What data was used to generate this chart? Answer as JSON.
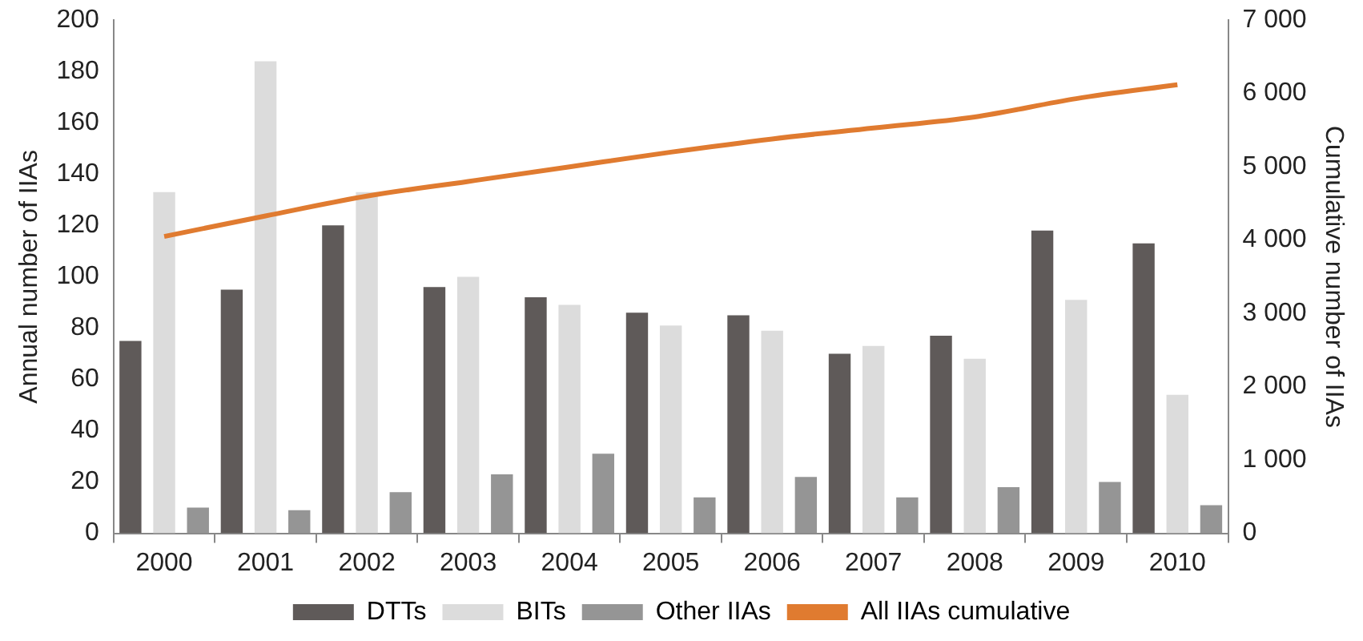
{
  "chart_data": {
    "type": "bar",
    "ylabel": "Annual number of IIAs",
    "y2label": "Cumulative number of IIAs",
    "categories": [
      "2000",
      "2001",
      "2002",
      "2003",
      "2004",
      "2005",
      "2006",
      "2007",
      "2008",
      "2009",
      "2010"
    ],
    "series": [
      {
        "name": "DTTs",
        "color": "#5f5a59",
        "values": [
          75,
          95,
          120,
          96,
          92,
          86,
          85,
          70,
          77,
          118,
          113
        ]
      },
      {
        "name": "BITs",
        "color": "#dcdcdc",
        "values": [
          133,
          184,
          133,
          100,
          89,
          81,
          79,
          73,
          68,
          91,
          54
        ]
      },
      {
        "name": "Other IIAs",
        "color": "#959595",
        "values": [
          10,
          9,
          16,
          23,
          31,
          14,
          22,
          14,
          18,
          20,
          11
        ]
      },
      {
        "name": "All IIAs cumulative",
        "type": "line",
        "axis": "y2",
        "color": "#e07b30",
        "values": [
          4050,
          4330,
          4600,
          4800,
          5000,
          5200,
          5380,
          5530,
          5680,
          5930,
          6120
        ]
      }
    ],
    "ylim": [
      0,
      200
    ],
    "yticks": [
      0,
      20,
      40,
      60,
      80,
      100,
      120,
      140,
      160,
      180,
      200
    ],
    "y2lim": [
      0,
      7000
    ],
    "y2ticks": [
      {
        "value": 0,
        "label": "0"
      },
      {
        "value": 1000,
        "label": "1 000"
      },
      {
        "value": 2000,
        "label": "2 000"
      },
      {
        "value": 3000,
        "label": "3 000"
      },
      {
        "value": 4000,
        "label": "4 000"
      },
      {
        "value": 5000,
        "label": "5 000"
      },
      {
        "value": 6000,
        "label": "6 000"
      },
      {
        "value": 7000,
        "label": "7 000"
      }
    ],
    "grid": false,
    "legend": "bottom",
    "marker": "none"
  }
}
